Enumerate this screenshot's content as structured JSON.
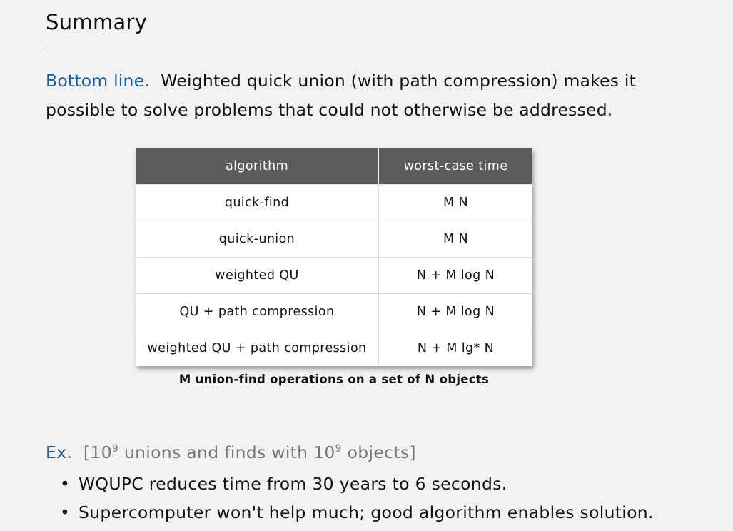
{
  "title": "Summary",
  "bottom_line": {
    "label": "Bottom line.",
    "text_line1": "Weighted quick union (with path compression) makes it",
    "text_line2": "possible to solve problems that could not otherwise be addressed."
  },
  "table": {
    "headers": [
      "algorithm",
      "worst-case time"
    ],
    "rows": [
      [
        "quick-find",
        "M N"
      ],
      [
        "quick-union",
        "M N"
      ],
      [
        "weighted QU",
        "N + M log N"
      ],
      [
        "QU + path compression",
        "N + M log N"
      ],
      [
        "weighted QU + path compression",
        "N + M lg* N"
      ]
    ],
    "caption": "M union-find operations on a set of N objects"
  },
  "example": {
    "label": "Ex.",
    "bracket_open": "[10",
    "exp1": "9",
    "mid": " unions and finds with 10",
    "exp2": "9",
    "bracket_close": " objects]",
    "bullets": [
      "WQUPC reduces time from 30 years to 6 seconds.",
      "Supercomputer won't help much; good algorithm enables solution."
    ]
  }
}
